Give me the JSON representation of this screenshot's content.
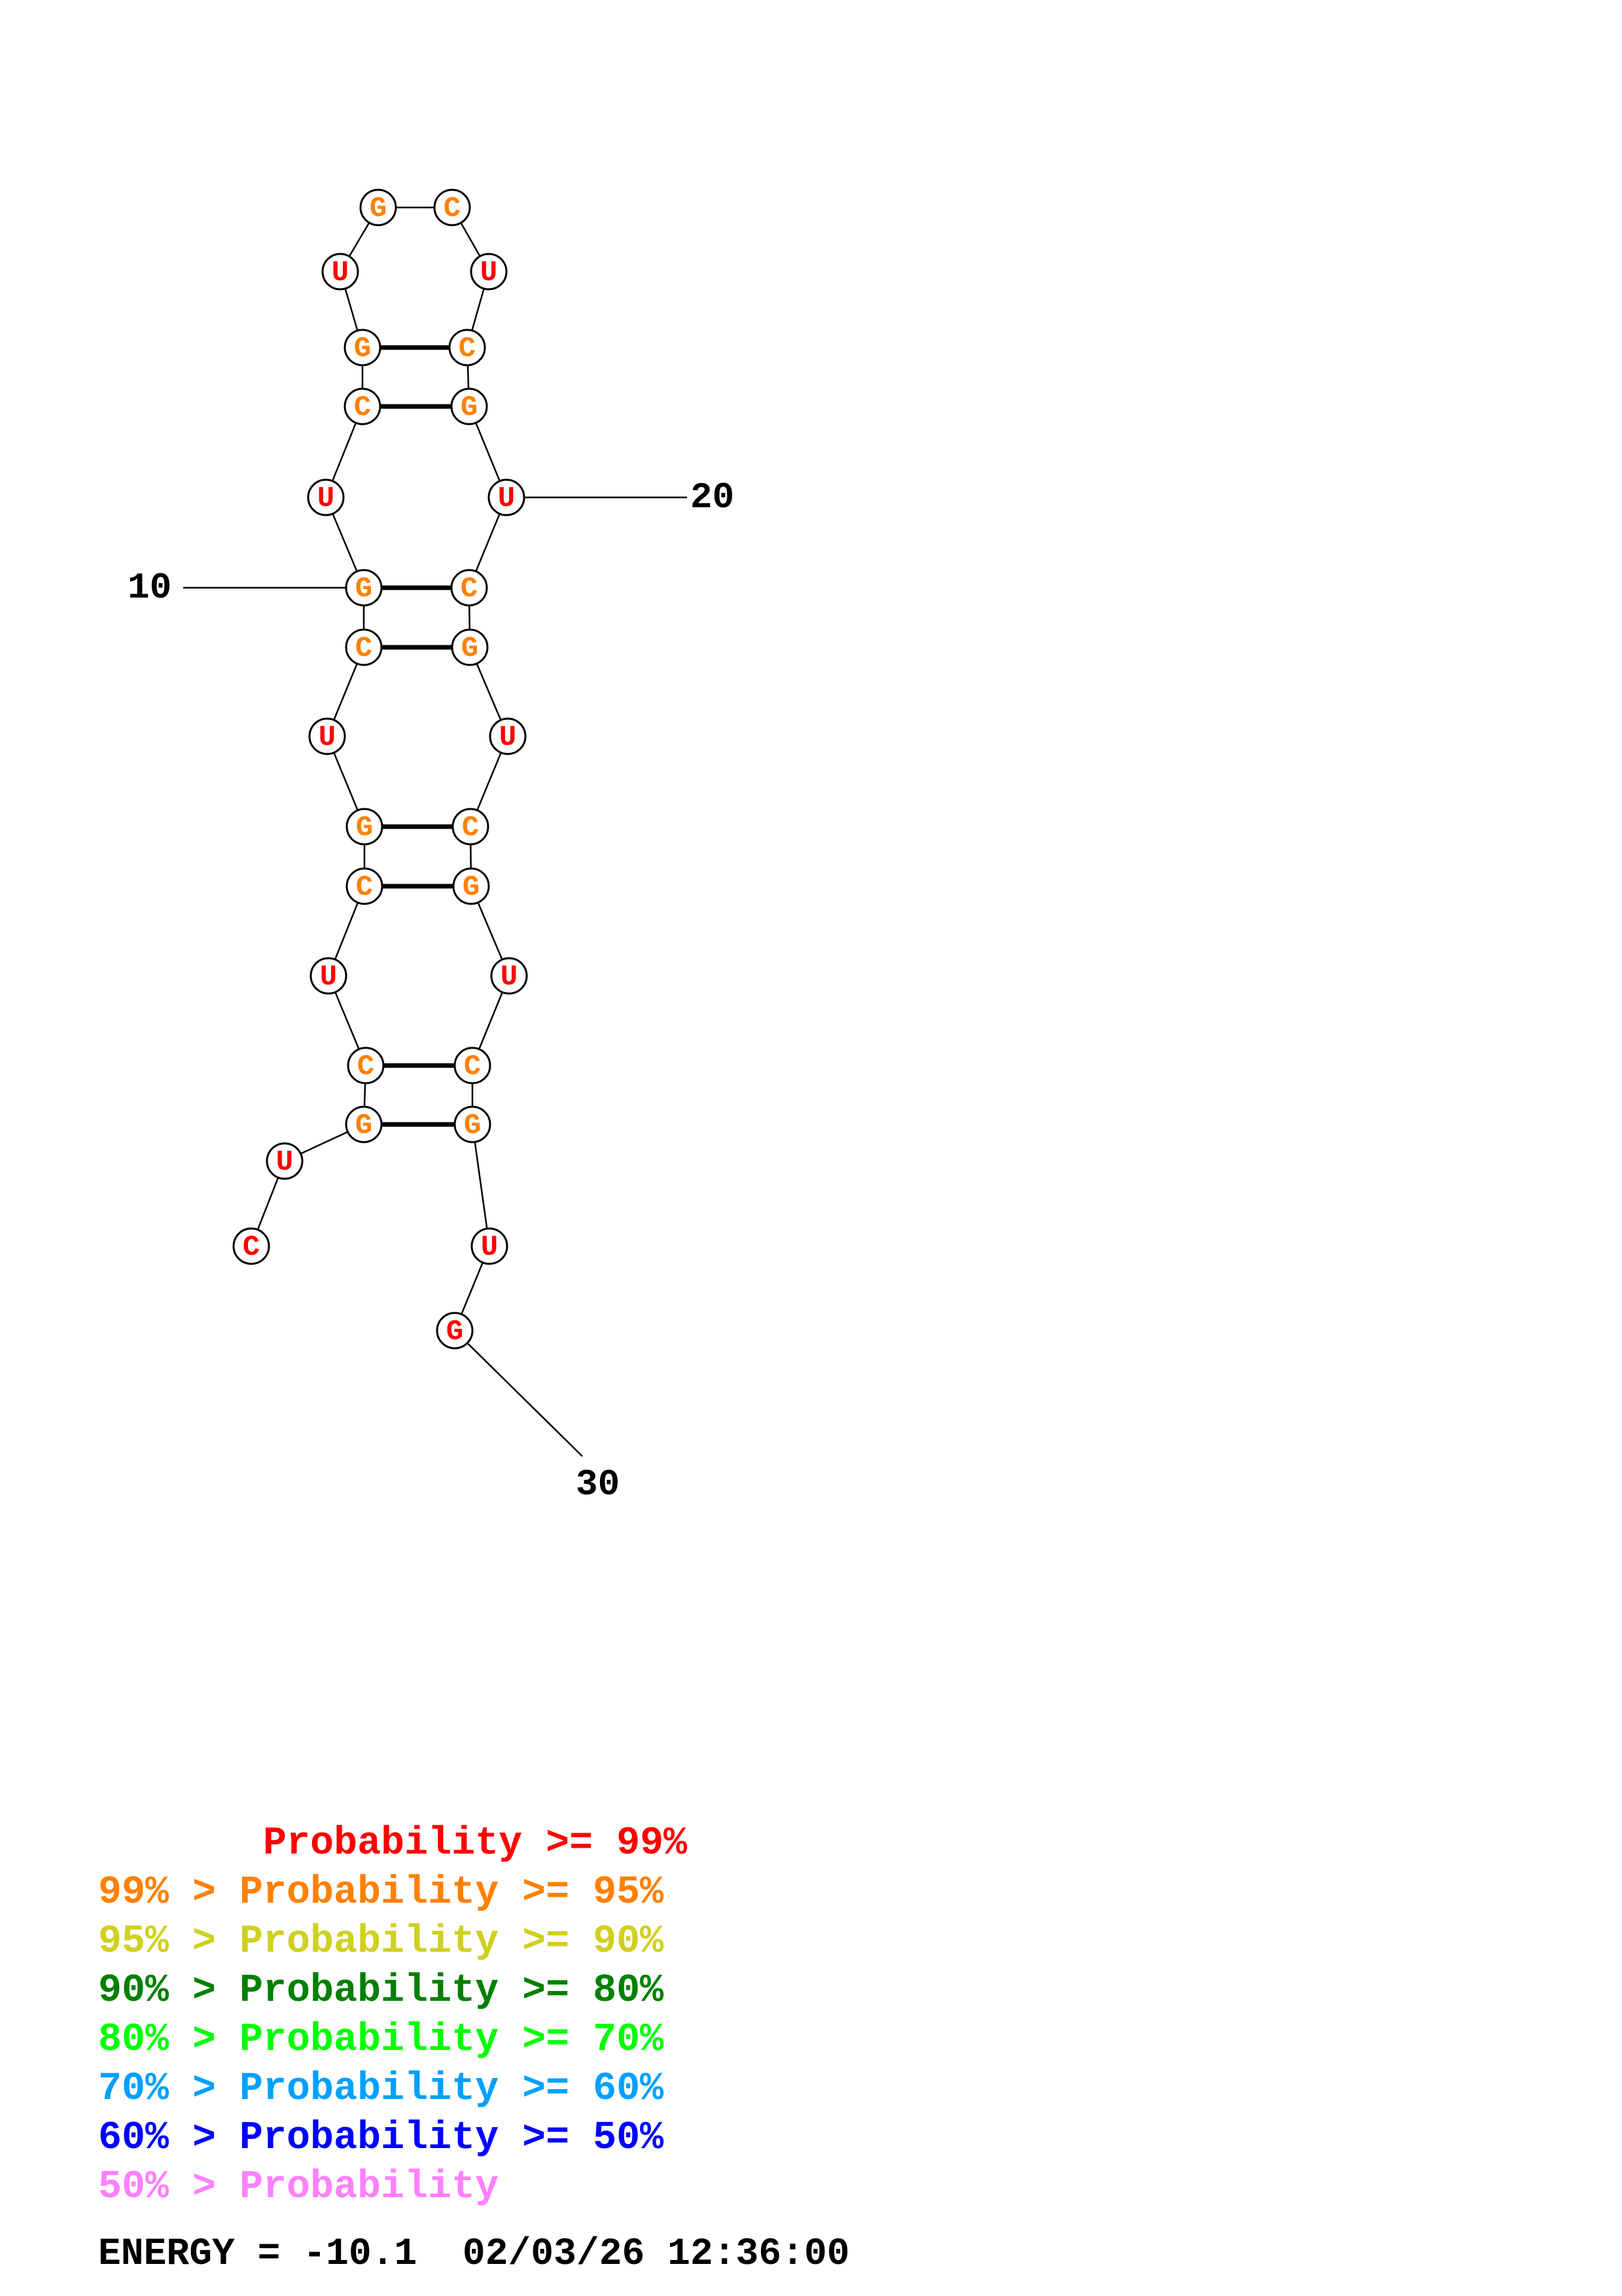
{
  "colors": {
    "p99": "#ff0000",
    "p95": "#ff8000",
    "p90": "#d0d020",
    "p80": "#008000",
    "p70": "#00ff00",
    "p60": "#00a0ff",
    "p50": "#0000ff",
    "plow": "#ff80ff"
  },
  "structure": {
    "sequence": [
      "C",
      "U",
      "G",
      "C",
      "U",
      "C",
      "G",
      "U",
      "C",
      "G",
      "U",
      "C",
      "G",
      "U",
      "G",
      "C",
      "U",
      "C",
      "G",
      "U",
      "C",
      "G",
      "U",
      "C",
      "G",
      "U",
      "C",
      "G",
      "U",
      "G"
    ],
    "probability_class": [
      "p99",
      "p99",
      "p95",
      "p95",
      "p99",
      "p95",
      "p95",
      "p99",
      "p95",
      "p95",
      "p99",
      "p95",
      "p95",
      "p99",
      "p95",
      "p95",
      "p99",
      "p95",
      "p95",
      "p99",
      "p95",
      "p95",
      "p99",
      "p95",
      "p95",
      "p99",
      "p95",
      "p95",
      "p99",
      "p99"
    ],
    "pairs": [
      [
        3,
        28
      ],
      [
        4,
        27
      ],
      [
        6,
        25
      ],
      [
        7,
        24
      ],
      [
        9,
        22
      ],
      [
        10,
        21
      ],
      [
        12,
        19
      ],
      [
        13,
        18
      ]
    ],
    "numbering": [
      {
        "index": 10,
        "label": "10"
      },
      {
        "index": 20,
        "label": "20"
      },
      {
        "index": 30,
        "label": "30"
      }
    ]
  },
  "legend": [
    {
      "prefix": "       ",
      "text": "Probability >= 99%",
      "color": "p99"
    },
    {
      "prefix": "",
      "text": "99% > Probability >= 95%",
      "color": "p95"
    },
    {
      "prefix": "",
      "text": "95% > Probability >= 90%",
      "color": "p90"
    },
    {
      "prefix": "",
      "text": "90% > Probability >= 80%",
      "color": "p80"
    },
    {
      "prefix": "",
      "text": "80% > Probability >= 70%",
      "color": "p70"
    },
    {
      "prefix": "",
      "text": "70% > Probability >= 60%",
      "color": "p60"
    },
    {
      "prefix": "",
      "text": "60% > Probability >= 50%",
      "color": "p50"
    },
    {
      "prefix": "",
      "text": "50% > Probability",
      "color": "plow"
    }
  ],
  "energy": {
    "text": "ENERGY = -10.1  02/03/26 12:36:00"
  }
}
